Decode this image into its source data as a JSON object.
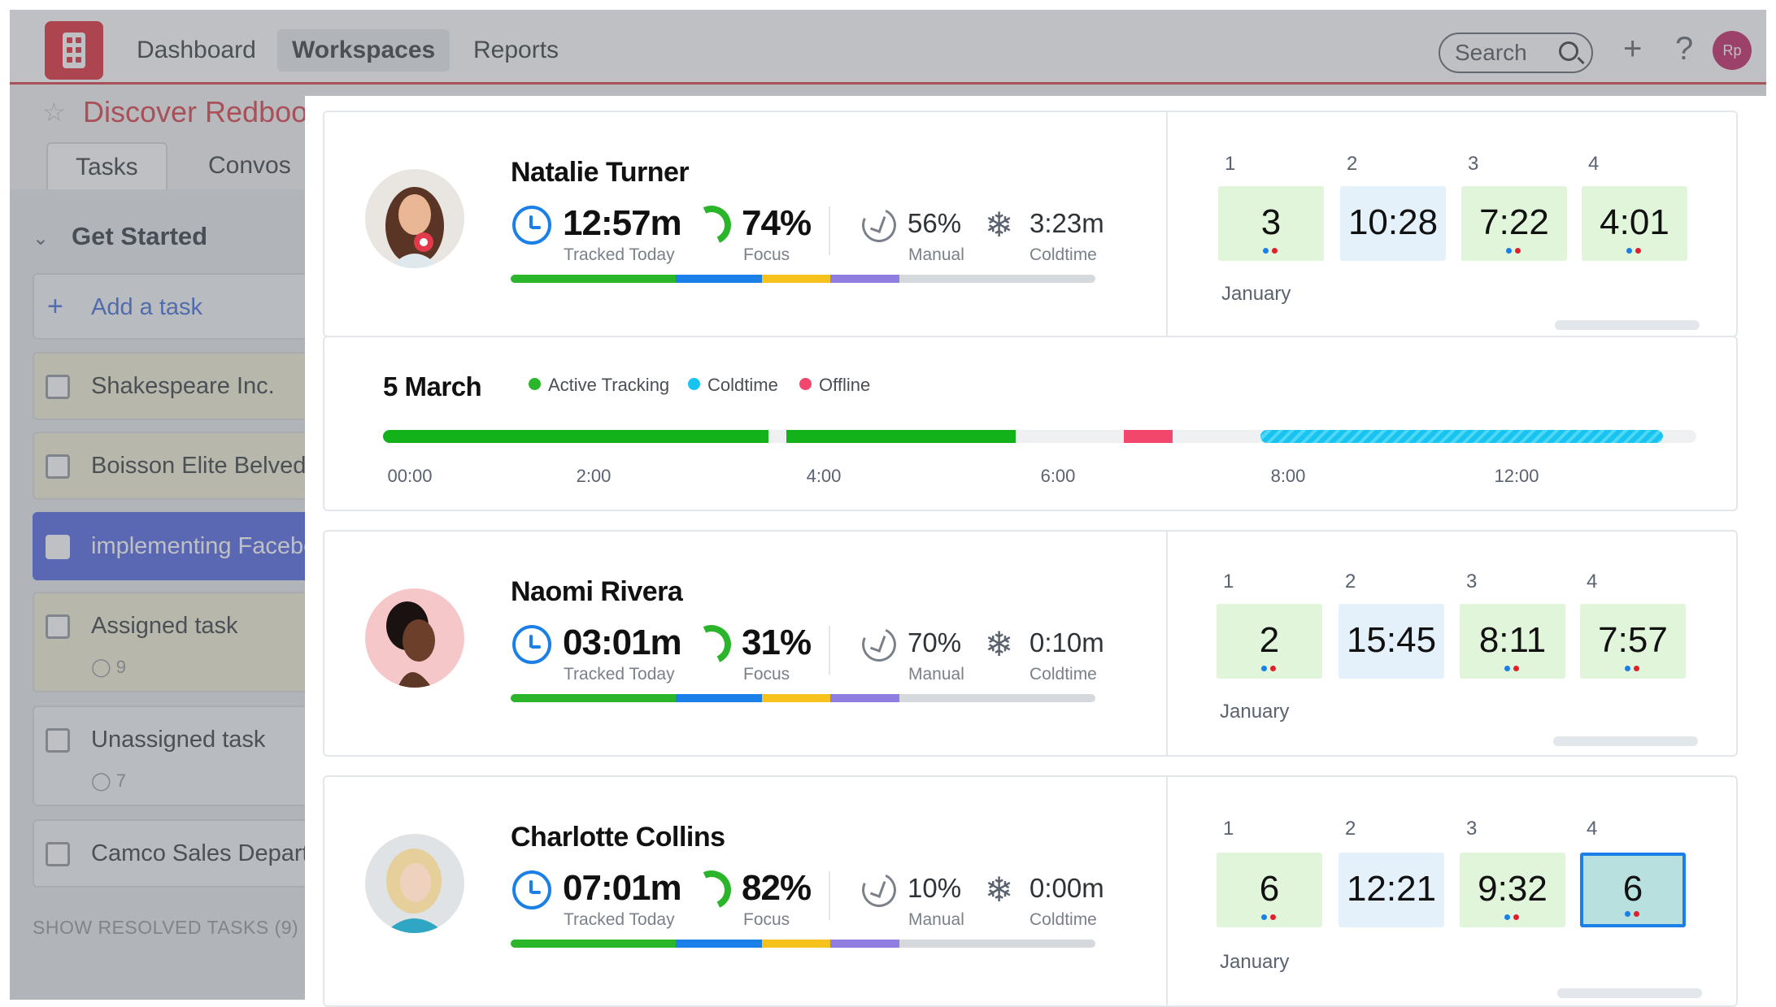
{
  "background": {
    "nav": {
      "dashboard": "Dashboard",
      "workspaces": "Workspaces",
      "reports": "Reports"
    },
    "search_placeholder": "Search",
    "user_initials": "Rp",
    "project_title": "Discover Redbooth",
    "tabs": {
      "tasks": "Tasks",
      "convos": "Convos"
    },
    "section": "Get Started",
    "add_task": "Add a task",
    "tasks": [
      {
        "label": "Shakespeare Inc.",
        "meta": ""
      },
      {
        "label": "Boisson Elite Belvedere",
        "meta": ""
      },
      {
        "label": "implementing Facebook",
        "meta": ""
      },
      {
        "label": "Assigned task",
        "meta": "9"
      },
      {
        "label": "Unassigned task",
        "meta": "7"
      },
      {
        "label": "Camco Sales Department",
        "meta": ""
      }
    ],
    "show_resolved": "SHOW RESOLVED TASKS (9)"
  },
  "colors": {
    "brand": "#e0202e",
    "tracked": "#2ab52a",
    "focus_blue": "#1a7fe6",
    "yellow": "#f7c21b",
    "purple": "#8f7ee0",
    "coldtime": "#18c4ef",
    "offline": "#f2466c"
  },
  "people": [
    {
      "name": "Natalie Turner",
      "tracked": "12:57m",
      "tracked_label": "Tracked Today",
      "focus": "74%",
      "focus_label": "Focus",
      "manual": "56%",
      "manual_label": "Manual",
      "coldtime": "3:23m",
      "coldtime_label": "Coldtime",
      "days": [
        {
          "num": "1",
          "value": "3"
        },
        {
          "num": "2",
          "value": "10:28"
        },
        {
          "num": "3",
          "value": "7:22"
        },
        {
          "num": "4",
          "value": "4:01"
        }
      ],
      "month": "January"
    },
    {
      "name": "Naomi Rivera",
      "tracked": "03:01m",
      "tracked_label": "Tracked Today",
      "focus": "31%",
      "focus_label": "Focus",
      "manual": "70%",
      "manual_label": "Manual",
      "coldtime": "0:10m",
      "coldtime_label": "Coldtime",
      "days": [
        {
          "num": "1",
          "value": "2"
        },
        {
          "num": "2",
          "value": "15:45"
        },
        {
          "num": "3",
          "value": "8:11"
        },
        {
          "num": "4",
          "value": "7:57"
        }
      ],
      "month": "January"
    },
    {
      "name": "Charlotte Collins",
      "tracked": "07:01m",
      "tracked_label": "Tracked Today",
      "focus": "82%",
      "focus_label": "Focus",
      "manual": "10%",
      "manual_label": "Manual",
      "coldtime": "0:00m",
      "coldtime_label": "Coldtime",
      "days": [
        {
          "num": "1",
          "value": "6"
        },
        {
          "num": "2",
          "value": "12:21"
        },
        {
          "num": "3",
          "value": "9:32"
        },
        {
          "num": "4",
          "value": "6"
        }
      ],
      "month": "January"
    }
  ],
  "timeline": {
    "date": "5 March",
    "legend": {
      "active": "Active Tracking",
      "coldtime": "Coldtime",
      "offline": "Offline"
    },
    "ticks": [
      "00:00",
      "2:00",
      "4:00",
      "6:00",
      "8:00",
      "12:00"
    ]
  }
}
